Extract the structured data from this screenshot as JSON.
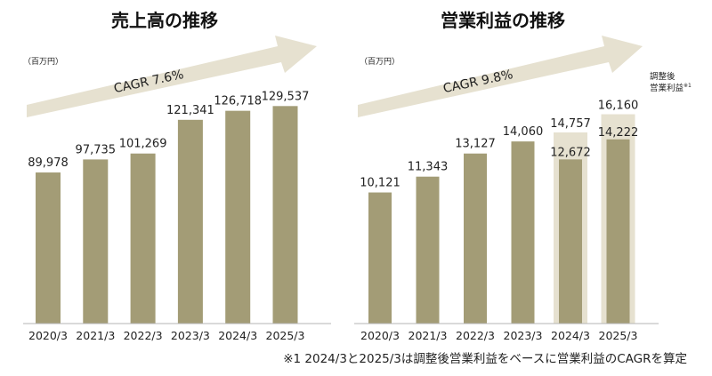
{
  "chart_data": [
    {
      "type": "bar",
      "title": "売上高の推移",
      "unit": "（百万円）",
      "categories": [
        "2020/3",
        "2021/3",
        "2022/3",
        "2023/3",
        "2024/3",
        "2025/3"
      ],
      "values": [
        89978,
        97735,
        101269,
        121341,
        126718,
        129537
      ],
      "value_labels": [
        "89,978",
        "97,735",
        "101,269",
        "121,341",
        "126,718",
        "129,537"
      ],
      "cagr_label": "CAGR 7.6%",
      "ylim": [
        0,
        135000
      ],
      "colors": {
        "bar": "#a39c76",
        "arrow": "#e6e1d0",
        "axis": "#b5b5b5"
      }
    },
    {
      "type": "bar",
      "title": "営業利益の推移",
      "unit": "（百万円）",
      "categories": [
        "2020/3",
        "2021/3",
        "2022/3",
        "2023/3",
        "2024/3",
        "2025/3"
      ],
      "series": [
        {
          "name": "",
          "values": [
            10121,
            11343,
            13127,
            14060,
            12672,
            14222
          ],
          "value_labels": [
            "10,121",
            "11,343",
            "13,127",
            "14,060",
            "12,672",
            "14,222"
          ]
        },
        {
          "name": "調整後営業利益※1",
          "values": [
            null,
            null,
            null,
            null,
            14757,
            16160
          ],
          "value_labels": [
            "",
            "",
            "",
            "",
            "14,757",
            "16,160"
          ]
        }
      ],
      "adjusted_label_line1": "調整後",
      "adjusted_label_line2": "営業利益",
      "adjusted_label_mark": "※1",
      "cagr_label": "CAGR 9.8%",
      "ylim": [
        0,
        17500
      ],
      "colors": {
        "bar": "#a39c76",
        "adjusted_bar": "#e6e1d0",
        "arrow": "#e6e1d0",
        "axis": "#b5b5b5"
      }
    }
  ],
  "footnote": "※1 2024/3と2025/3は調整後営業利益をベースに営業利益のCAGRを算定"
}
